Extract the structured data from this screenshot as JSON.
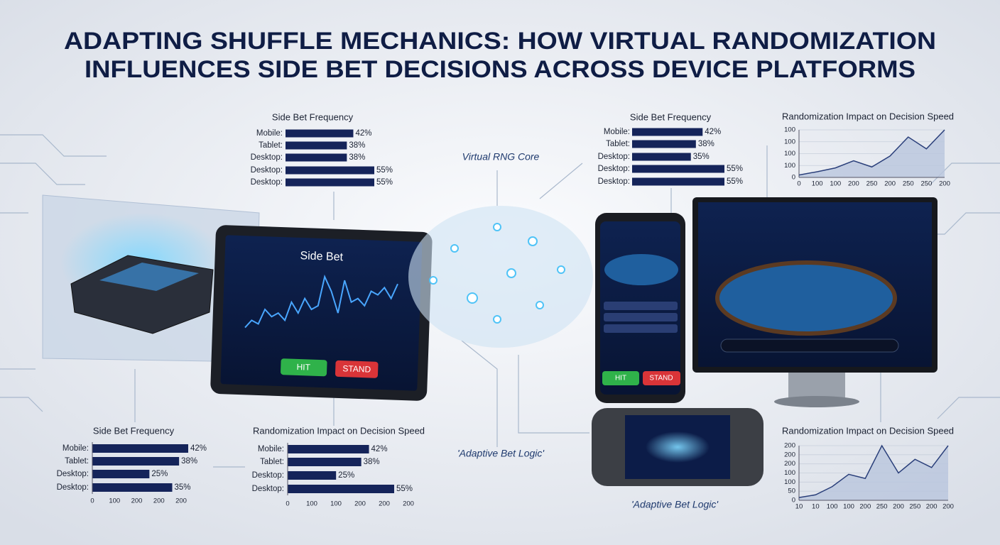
{
  "title": [
    "ADAPTING SHUFFLE MECHANICS: HOW VIRTUAL RANDOMIZATION",
    "INFLUENCES SIDE BET DECISIONS ACROSS DEVICE PLATFORMS"
  ],
  "labels": {
    "rng_core": "Virtual RNG Core",
    "adaptive_center": "'Adaptive Bet Logic'",
    "adaptive_right": "'Adaptive Bet Logic'"
  },
  "devices": {
    "tablet": {
      "title": "Side Bet",
      "hit": "HIT",
      "stand": "STAND"
    },
    "phone": {
      "hit": "HIT",
      "stand": "STAND"
    }
  },
  "chart_data": [
    {
      "type": "bar",
      "orientation": "horizontal",
      "title": "Side Bet Frequency",
      "color": "#15245a",
      "categories": [
        "Mobile:",
        "Tablet:",
        "Desktop:",
        "Desktop:",
        "Desktop:"
      ],
      "values": [
        42,
        38,
        38,
        55,
        55
      ],
      "value_labels": [
        "42%",
        "38%",
        "38%",
        "55%",
        "55%"
      ]
    },
    {
      "type": "bar",
      "orientation": "horizontal",
      "title": "Side Bet Frequency",
      "color": "#15245a",
      "categories": [
        "Mobile:",
        "Tablet:",
        "Desktop:",
        "Desktop:",
        "Desktop:"
      ],
      "values": [
        42,
        38,
        35,
        55,
        55
      ],
      "value_labels": [
        "42%",
        "38%",
        "35%",
        "55%",
        "55%"
      ]
    },
    {
      "type": "line",
      "title": "Randomization Impact on Decision Speed",
      "color": "#2a3f7a",
      "fill": "#b9c6dd",
      "categories": [
        "0",
        "100",
        "100",
        "200",
        "250",
        "200",
        "250",
        "250",
        "200"
      ],
      "values": [
        5,
        12,
        20,
        35,
        22,
        45,
        85,
        60,
        100
      ],
      "ylim": [
        0,
        100
      ],
      "y_labels": [
        "100",
        "100",
        "100",
        "100",
        "0"
      ]
    },
    {
      "type": "bar",
      "orientation": "horizontal",
      "title": "Side Bet Frequency",
      "color": "#15245a",
      "categories": [
        "Mobile:",
        "Tablet:",
        "Desktop:",
        "Desktop:"
      ],
      "values": [
        42,
        38,
        25,
        35
      ],
      "value_labels": [
        "42%",
        "38%",
        "25%",
        "35%"
      ],
      "axis_labels": [
        "0",
        "100",
        "200",
        "200",
        "200"
      ]
    },
    {
      "type": "bar",
      "orientation": "horizontal",
      "title": "Randomization Impact on Decision Speed",
      "color": "#15245a",
      "categories": [
        "Mobile:",
        "Tablet:",
        "Desktop:",
        "Desktop:"
      ],
      "values": [
        42,
        38,
        25,
        55
      ],
      "value_labels": [
        "42%",
        "38%",
        "25%",
        "55%"
      ],
      "axis_labels": [
        "0",
        "100",
        "100",
        "200",
        "200",
        "200"
      ]
    },
    {
      "type": "line",
      "title": "Randomization Impact on Decision Speed",
      "color": "#2a3f7a",
      "fill": "#b9c6dd",
      "categories": [
        "10",
        "10",
        "100",
        "100",
        "200",
        "250",
        "200",
        "250",
        "200",
        "200"
      ],
      "values": [
        10,
        20,
        50,
        95,
        80,
        200,
        100,
        150,
        120,
        200
      ],
      "ylim": [
        0,
        200
      ],
      "y_labels": [
        "200",
        "200",
        "200",
        "100",
        "100",
        "50",
        "0"
      ]
    },
    {
      "type": "line",
      "color": "#49a6ff",
      "values": [
        20,
        30,
        25,
        45,
        35,
        40,
        30,
        55,
        40,
        60,
        45,
        50,
        90,
        70,
        40,
        85,
        55,
        60,
        50,
        70,
        65,
        75,
        60,
        80
      ]
    }
  ]
}
